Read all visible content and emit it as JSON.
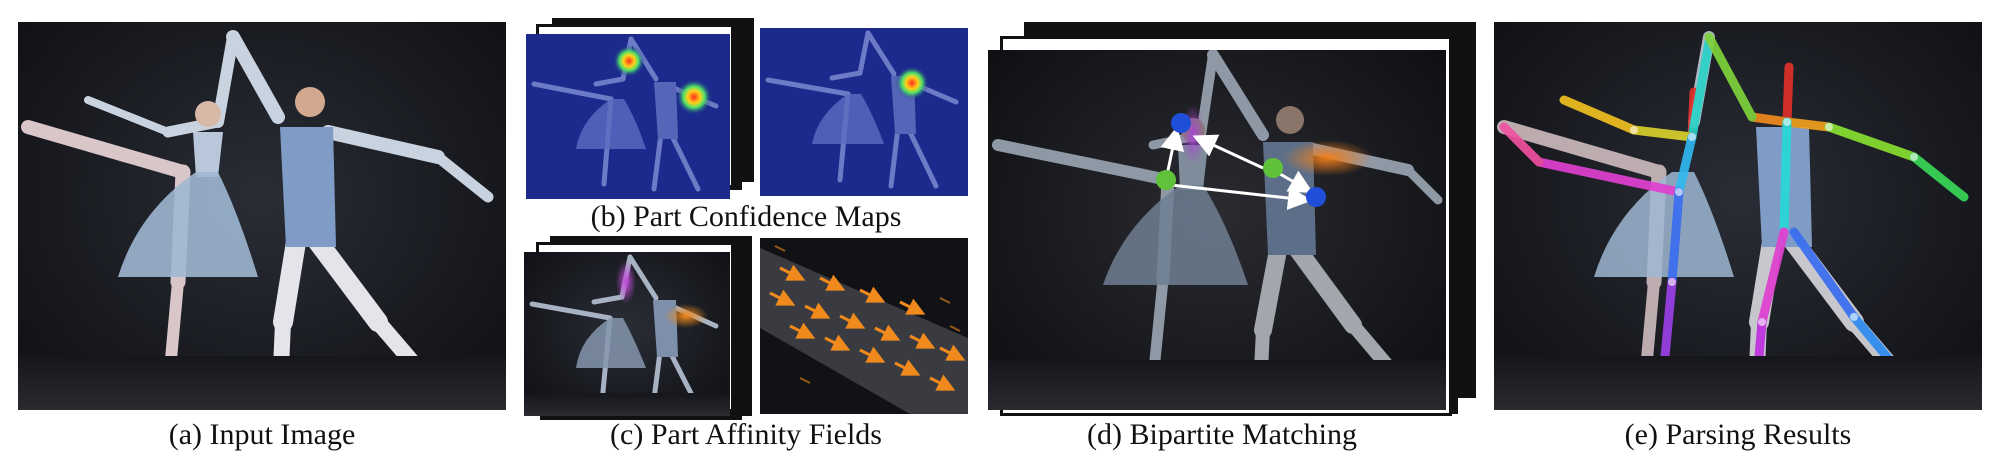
{
  "panels": [
    {
      "id": "a",
      "caption": "(a) Input Image"
    },
    {
      "id": "b",
      "caption": "(b) Part Confidence Maps"
    },
    {
      "id": "c",
      "caption": "(c) Part Affinity Fields"
    },
    {
      "id": "d",
      "caption": "(d) Bipartite Matching"
    },
    {
      "id": "e",
      "caption": "(e) Parsing Results"
    }
  ],
  "colors": {
    "heatmap_bg": "#1b2a8c",
    "affinity_arrow": "#f08a1c",
    "match_blue": "#1f4fd8",
    "match_green": "#5fc23a",
    "match_arrow": "#ffffff"
  }
}
